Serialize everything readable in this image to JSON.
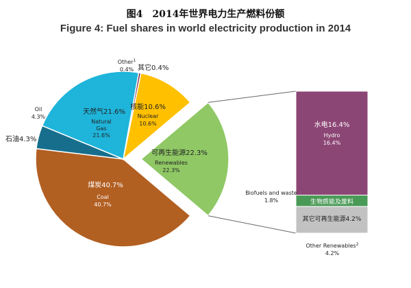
{
  "title_cn": "图4　2014年世界电力生产燃料份额",
  "title_en": "Figure 4: Fuel shares in world electricity production in 2014",
  "chart_data": {
    "type": "pie",
    "slices": [
      {
        "key": "renewables",
        "value": 22.3,
        "label_cn": "可再生能源22.3%",
        "label_en": "Renewables",
        "pct": "22.3%",
        "color": "#8fc865"
      },
      {
        "key": "coal",
        "value": 40.7,
        "label_cn": "煤炭40.7%",
        "label_en": "Coal",
        "pct": "40.7%",
        "color": "#b25f22"
      },
      {
        "key": "oil",
        "value": 4.3,
        "label_cn": "石油4.3%",
        "label_en": "Oil",
        "pct": "4.3%",
        "color": "#176e8c"
      },
      {
        "key": "gas",
        "value": 21.6,
        "label_cn": "天然气21.6%",
        "label_en_line1": "Natural",
        "label_en_line2": "Gas",
        "pct": "21.6%",
        "color": "#1fb4da"
      },
      {
        "key": "other",
        "value": 0.4,
        "label_cn": "其它0.4%",
        "label_en": "Other",
        "sup": "1",
        "pct": "0.4%",
        "color": "#7f2a52"
      },
      {
        "key": "nuclear",
        "value": 10.6,
        "label_cn": "核能10.6%",
        "label_en": "Nuclear",
        "pct": "10.6%",
        "color": "#ffc000"
      }
    ],
    "renewables_breakdown": [
      {
        "key": "hydro",
        "value": 16.4,
        "label_cn": "水电16.4%",
        "label_en": "Hydro",
        "pct": "16.4%",
        "color": "#8c4675"
      },
      {
        "key": "biofuels",
        "value": 1.8,
        "label_cn": "生物质能及废料",
        "label_en": "Biofuels and waste",
        "pct": "1.8%",
        "color": "#4a9a57"
      },
      {
        "key": "other_renewables",
        "value": 4.2,
        "label_cn": "其它可再生能源4.2%",
        "label_en": "Other Renewables",
        "sup": "2",
        "pct": "4.2%",
        "color": "#c2c2c2"
      }
    ]
  }
}
